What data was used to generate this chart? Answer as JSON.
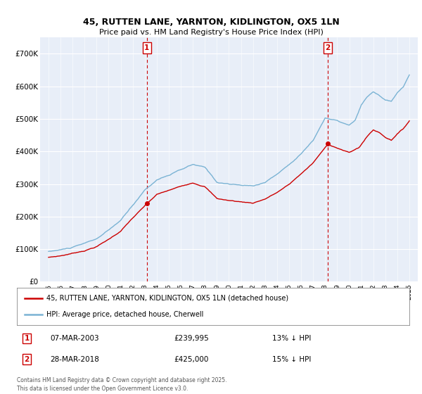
{
  "title_line1": "45, RUTTEN LANE, YARNTON, KIDLINGTON, OX5 1LN",
  "title_line2": "Price paid vs. HM Land Registry's House Price Index (HPI)",
  "legend_line1": "45, RUTTEN LANE, YARNTON, KIDLINGTON, OX5 1LN (detached house)",
  "legend_line2": "HPI: Average price, detached house, Cherwell",
  "annotation1_label": "1",
  "annotation1_date": "07-MAR-2003",
  "annotation1_price": "£239,995",
  "annotation1_note": "13% ↓ HPI",
  "annotation2_label": "2",
  "annotation2_date": "28-MAR-2018",
  "annotation2_price": "£425,000",
  "annotation2_note": "15% ↓ HPI",
  "footer": "Contains HM Land Registry data © Crown copyright and database right 2025.\nThis data is licensed under the Open Government Licence v3.0.",
  "sale1_x": 2003.18,
  "sale1_y": 239995,
  "sale2_x": 2018.23,
  "sale2_y": 425000,
  "vline1_x": 2003.18,
  "vline2_x": 2018.23,
  "hpi_color": "#7ab3d4",
  "price_color": "#cc0000",
  "vline_color": "#cc0000",
  "ylim_min": 0,
  "ylim_max": 750000,
  "xlim_min": 1994.3,
  "xlim_max": 2025.7,
  "background_color": "#e8eef8",
  "yticks": [
    0,
    100000,
    200000,
    300000,
    400000,
    500000,
    600000,
    700000
  ],
  "ytick_labels": [
    "£0",
    "£100K",
    "£200K",
    "£300K",
    "£400K",
    "£500K",
    "£600K",
    "£700K"
  ],
  "xtick_start": 1995,
  "xtick_end": 2025
}
